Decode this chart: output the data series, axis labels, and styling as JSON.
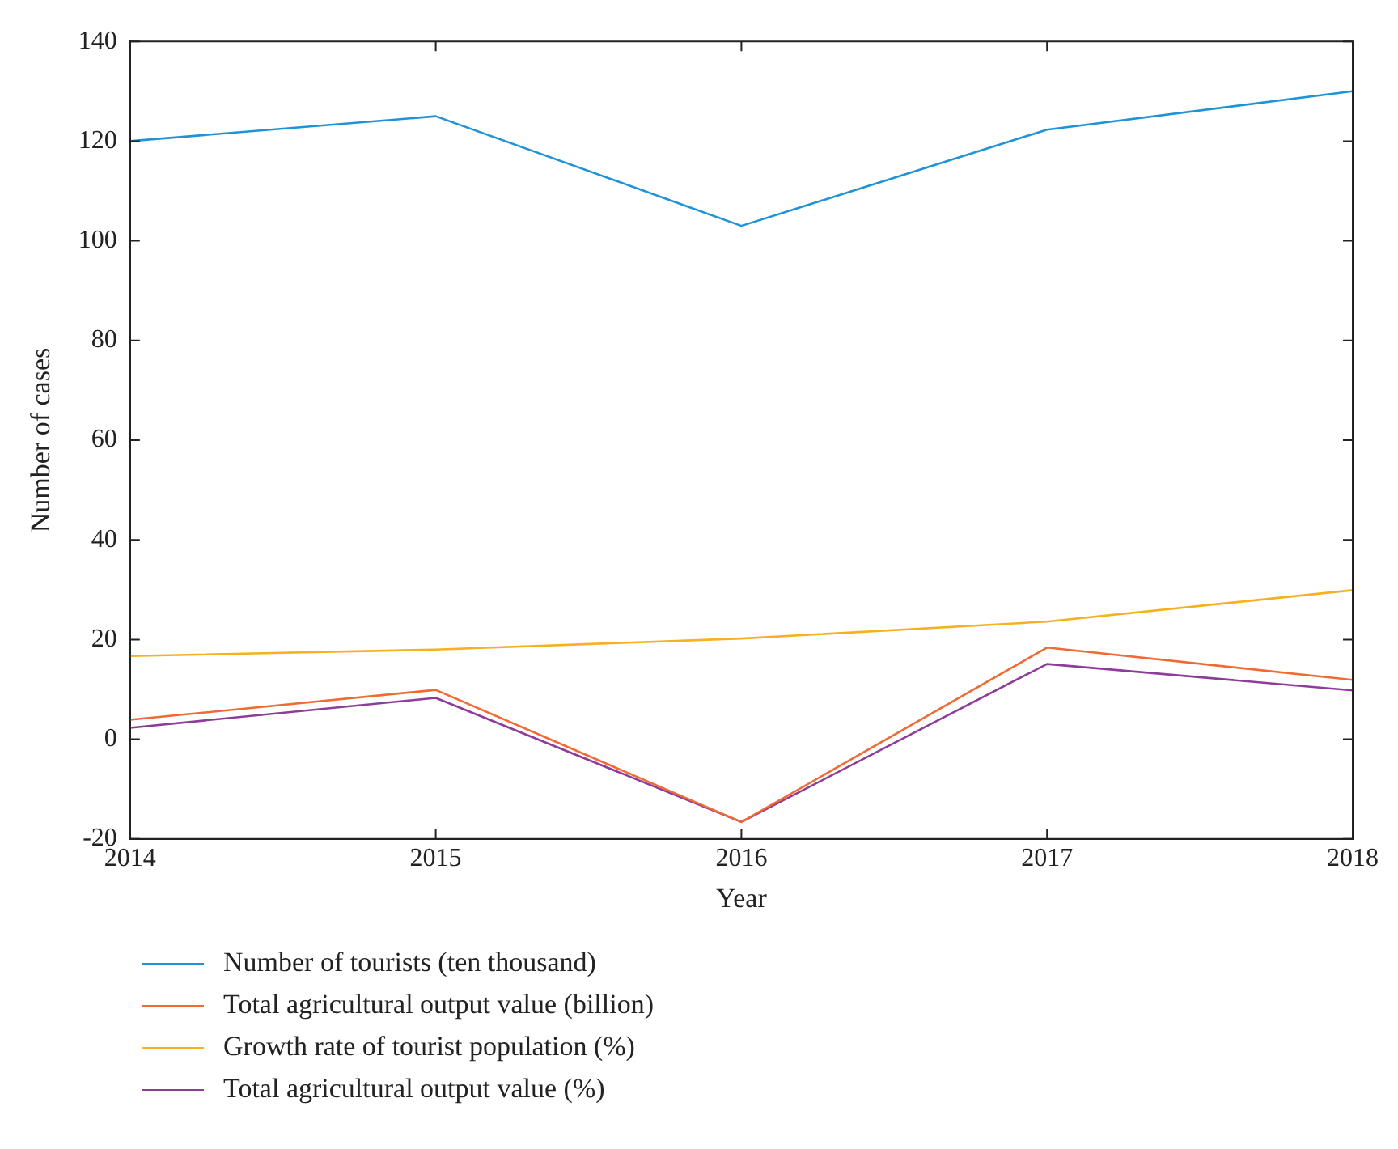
{
  "chart_data": {
    "type": "line",
    "xlabel": "Year",
    "ylabel": "Number of cases",
    "x": [
      2014,
      2015,
      2016,
      2017,
      2018
    ],
    "series": [
      {
        "name": "Number of tourists (ten thousand)",
        "color": "#1f93d6",
        "values": [
          120,
          125,
          103,
          122.3,
          130
        ]
      },
      {
        "name": "Total agricultural output value (billion)",
        "color": "#f26a33",
        "values": [
          3.9,
          9.9,
          -16.6,
          18.4,
          11.9
        ]
      },
      {
        "name": "Growth rate of tourist population (%)",
        "color": "#f6b020",
        "values": [
          16.7,
          18,
          20.2,
          23.6,
          29.9
        ]
      },
      {
        "name": "Total agricultural output value (%)",
        "color": "#8e3c9a",
        "values": [
          2.3,
          8.3,
          -16.6,
          15.1,
          9.8
        ]
      }
    ],
    "xlim": [
      2014,
      2018
    ],
    "xticks": [
      2014,
      2015,
      2016,
      2017,
      2018
    ],
    "ylim": [
      -20,
      140
    ],
    "yticks": [
      -20,
      0,
      20,
      40,
      60,
      80,
      100,
      120,
      140
    ],
    "grid": false,
    "legend": "bottom",
    "marker": "none",
    "line_style": "solid"
  }
}
